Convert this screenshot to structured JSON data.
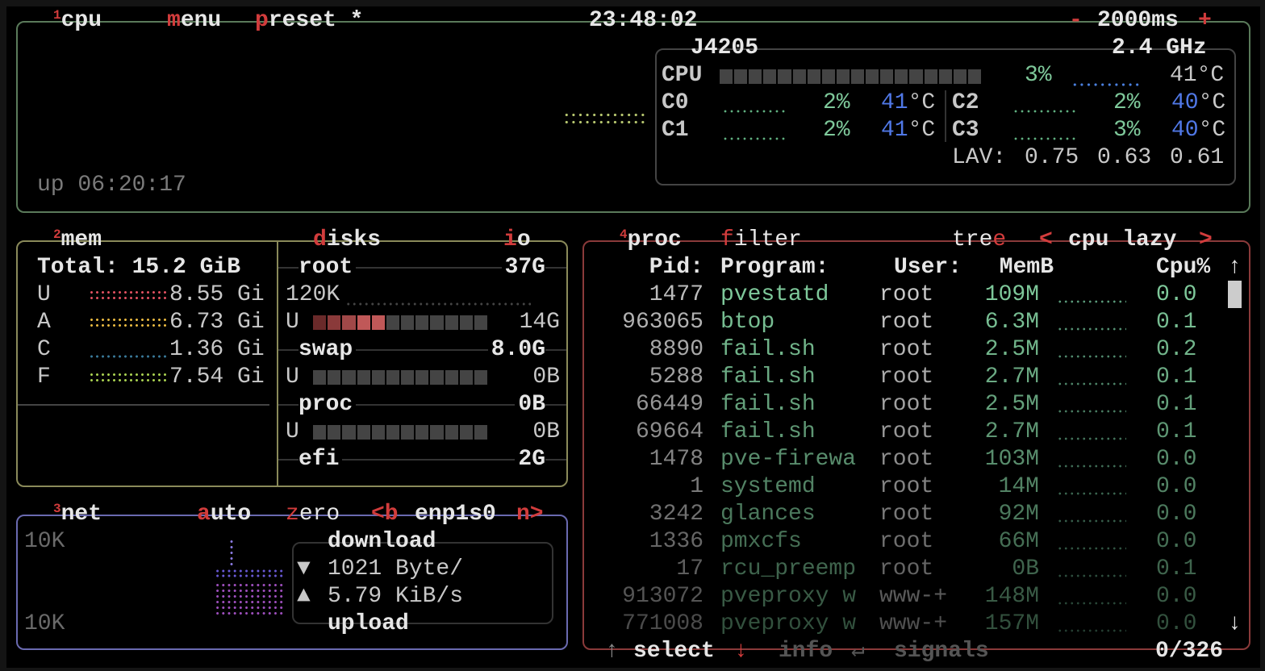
{
  "cpu_box": {
    "index": "1",
    "title": "cpu",
    "menu": "menu",
    "preset": "preset *",
    "clock": "23:48:02",
    "minus": "-",
    "interval": "2000ms",
    "plus": "+",
    "uptime": "up 06:20:17",
    "model": "J4205",
    "freq": "2.4 GHz",
    "total": {
      "label": "CPU",
      "percent": "3%",
      "temp": "41°C",
      "bar_fill": 0.03
    },
    "cores": [
      {
        "label": "C0",
        "percent": "2%",
        "temp_num": "41",
        "temp_unit": "°C"
      },
      {
        "label": "C1",
        "percent": "2%",
        "temp_num": "41",
        "temp_unit": "°C"
      },
      {
        "label": "C2",
        "percent": "2%",
        "temp_num": "40",
        "temp_unit": "°C"
      },
      {
        "label": "C3",
        "percent": "3%",
        "temp_num": "40",
        "temp_unit": "°C"
      }
    ],
    "lav_label": "LAV:",
    "lav": [
      "0.75",
      "0.63",
      "0.61"
    ]
  },
  "mem_box": {
    "index": "2",
    "title": "mem",
    "total": "Total: 15.2 GiB",
    "rows": [
      {
        "label": "U",
        "value": "8.55 Gi",
        "color": "#e05060"
      },
      {
        "label": "A",
        "value": "6.73 Gi",
        "color": "#e8b840"
      },
      {
        "label": "C",
        "value": "1.36 Gi",
        "color": "#3a7a9a"
      },
      {
        "label": "F",
        "value": "7.54 Gi",
        "color": "#a8d050"
      }
    ]
  },
  "disks_box": {
    "title": "disks",
    "io": "io",
    "io_label": "120K",
    "disks": [
      {
        "name": "root",
        "size": "37G",
        "used_label": "U",
        "used": "14G",
        "fill": 0.38
      },
      {
        "name": "swap",
        "size": "8.0G",
        "used_label": "U",
        "used": "0B",
        "fill": 0
      },
      {
        "name": "proc",
        "size": "0B",
        "used_label": "U",
        "used": "0B",
        "fill": 0
      },
      {
        "name": "efi",
        "size": "2G"
      }
    ]
  },
  "net_box": {
    "index": "3",
    "title": "net",
    "auto": "auto",
    "zero": "zero",
    "prev": "<b",
    "iface": "enp1s0",
    "next": "n>",
    "scale_top": "10K",
    "scale_bottom": "10K",
    "download_label": "download",
    "download_icon": "▼",
    "download": "1021 Byte/",
    "upload_icon": "▲",
    "upload": "5.79 KiB/s",
    "upload_label": "upload"
  },
  "proc_box": {
    "index": "4",
    "title": "proc",
    "filter": "filter",
    "tree": "tree",
    "sort_prev": "<",
    "sort": "cpu lazy",
    "sort_next": ">",
    "headers": {
      "pid": "Pid:",
      "program": "Program:",
      "user": "User:",
      "mem": "MemB",
      "cpu": "Cpu%"
    },
    "scroll_up": "↑",
    "scroll_down": "↓",
    "rows": [
      {
        "pid": "1477",
        "program": "pvestatd",
        "user": "root",
        "mem": "109M",
        "cpu": "0.0"
      },
      {
        "pid": "963065",
        "program": "btop",
        "user": "root",
        "mem": "6.3M",
        "cpu": "0.1"
      },
      {
        "pid": "8890",
        "program": "fail.sh",
        "user": "root",
        "mem": "2.5M",
        "cpu": "0.2"
      },
      {
        "pid": "5288",
        "program": "fail.sh",
        "user": "root",
        "mem": "2.7M",
        "cpu": "0.1"
      },
      {
        "pid": "66449",
        "program": "fail.sh",
        "user": "root",
        "mem": "2.5M",
        "cpu": "0.1"
      },
      {
        "pid": "69664",
        "program": "fail.sh",
        "user": "root",
        "mem": "2.7M",
        "cpu": "0.1"
      },
      {
        "pid": "1478",
        "program": "pve-firewa",
        "user": "root",
        "mem": "103M",
        "cpu": "0.0"
      },
      {
        "pid": "1",
        "program": "systemd",
        "user": "root",
        "mem": "14M",
        "cpu": "0.0"
      },
      {
        "pid": "3242",
        "program": "glances",
        "user": "root",
        "mem": "92M",
        "cpu": "0.0"
      },
      {
        "pid": "1336",
        "program": "pmxcfs",
        "user": "root",
        "mem": "66M",
        "cpu": "0.0"
      },
      {
        "pid": "17",
        "program": "rcu_preemp",
        "user": "root",
        "mem": "0B",
        "cpu": "0.1"
      },
      {
        "pid": "913072",
        "program": "pveproxy w",
        "user": "www-+",
        "mem": "148M",
        "cpu": "0.0"
      },
      {
        "pid": "771008",
        "program": "pveproxy w",
        "user": "www-+",
        "mem": "157M",
        "cpu": "0.0"
      }
    ],
    "footer": {
      "up": "↑",
      "select": "select",
      "down": "↓",
      "info": "info",
      "enter": "↵",
      "signals": "signals",
      "count": "0/326"
    }
  },
  "colors": {
    "cpu_border": "#5a7a5a",
    "mem_border": "#8a8a5a",
    "net_border": "#6a6ab0",
    "proc_border": "#8a3a3a",
    "accent": "#d23c3c"
  }
}
